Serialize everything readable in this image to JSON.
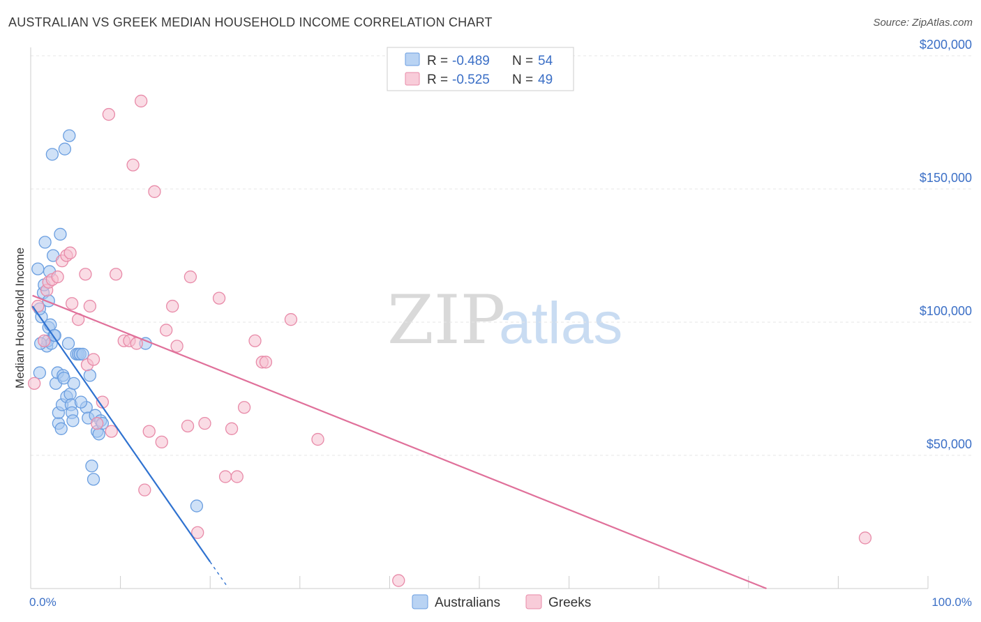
{
  "title": "AUSTRALIAN VS GREEK MEDIAN HOUSEHOLD INCOME CORRELATION CHART",
  "source": "Source: ZipAtlas.com",
  "watermark": {
    "zip": "ZIP",
    "atlas": "atlas"
  },
  "colors": {
    "australians_fill": "#a8c8f0",
    "australians_stroke": "#6a9ee0",
    "australians_line": "#2f72d0",
    "greeks_fill": "#f6bfd0",
    "greeks_stroke": "#e88aa8",
    "greeks_line": "#e0709a",
    "tick_text": "#3b6fc6",
    "grid": "#e6e6e6"
  },
  "legend": {
    "rows": [
      {
        "r_label": "R = ",
        "r_value": "-0.489",
        "n_label": "N = ",
        "n_value": "54"
      },
      {
        "r_label": "R = ",
        "r_value": "-0.525",
        "n_label": "N = ",
        "n_value": "49"
      }
    ]
  },
  "bottom_legend": [
    "Australians",
    "Greeks"
  ],
  "chart_data": {
    "type": "scatter",
    "xlabel": "",
    "ylabel": "Median Household Income",
    "xlim": [
      0,
      100
    ],
    "ylim": [
      0,
      200000
    ],
    "x_tick_labels": [
      "0.0%",
      "100.0%"
    ],
    "y_ticks": [
      50000,
      100000,
      150000,
      200000
    ],
    "y_tick_labels": [
      "$50,000",
      "$100,000",
      "$150,000",
      "$200,000"
    ],
    "grid": true,
    "series": [
      {
        "name": "Australians",
        "R": -0.489,
        "N": 54,
        "trend": {
          "x0": 0.2,
          "y0": 106000,
          "x1": 20,
          "y1": 10000,
          "dash_to_x": 22
        },
        "points": [
          [
            1.0,
            81000
          ],
          [
            1.2,
            102000
          ],
          [
            1.0,
            105000
          ],
          [
            1.4,
            111000
          ],
          [
            1.5,
            114000
          ],
          [
            1.6,
            130000
          ],
          [
            1.8,
            91000
          ],
          [
            1.9,
            93000
          ],
          [
            2.0,
            98000
          ],
          [
            2.1,
            119000
          ],
          [
            2.2,
            99000
          ],
          [
            2.3,
            92000
          ],
          [
            2.4,
            163000
          ],
          [
            2.5,
            125000
          ],
          [
            2.6,
            95000
          ],
          [
            2.7,
            95000
          ],
          [
            2.8,
            77000
          ],
          [
            3.0,
            81000
          ],
          [
            3.1,
            62000
          ],
          [
            3.1,
            66000
          ],
          [
            3.3,
            133000
          ],
          [
            3.4,
            60000
          ],
          [
            3.5,
            69000
          ],
          [
            3.6,
            80000
          ],
          [
            3.7,
            79000
          ],
          [
            3.8,
            165000
          ],
          [
            4.0,
            72000
          ],
          [
            4.2,
            92000
          ],
          [
            4.3,
            170000
          ],
          [
            4.4,
            73000
          ],
          [
            4.5,
            69000
          ],
          [
            4.6,
            66000
          ],
          [
            4.7,
            63000
          ],
          [
            4.8,
            77000
          ],
          [
            5.1,
            88000
          ],
          [
            5.3,
            88000
          ],
          [
            5.5,
            88000
          ],
          [
            5.8,
            88000
          ],
          [
            6.2,
            68000
          ],
          [
            6.4,
            64000
          ],
          [
            6.6,
            80000
          ],
          [
            6.8,
            46000
          ],
          [
            7.0,
            41000
          ],
          [
            7.2,
            65000
          ],
          [
            7.4,
            59000
          ],
          [
            7.6,
            58000
          ],
          [
            7.8,
            63000
          ],
          [
            8.0,
            62000
          ],
          [
            12.8,
            92000
          ],
          [
            18.5,
            31000
          ],
          [
            0.8,
            120000
          ],
          [
            1.1,
            92000
          ],
          [
            2.0,
            108000
          ],
          [
            5.6,
            70000
          ]
        ]
      },
      {
        "name": "Greeks",
        "R": -0.525,
        "N": 49,
        "trend": {
          "x0": 0.2,
          "y0": 110000,
          "x1": 82,
          "y1": 0
        },
        "points": [
          [
            0.4,
            77000
          ],
          [
            0.8,
            106000
          ],
          [
            1.5,
            93000
          ],
          [
            1.8,
            112000
          ],
          [
            2.0,
            115000
          ],
          [
            2.4,
            116000
          ],
          [
            3.0,
            117000
          ],
          [
            3.5,
            123000
          ],
          [
            4.0,
            125000
          ],
          [
            4.4,
            126000
          ],
          [
            4.6,
            107000
          ],
          [
            5.3,
            101000
          ],
          [
            6.1,
            118000
          ],
          [
            6.3,
            84000
          ],
          [
            6.6,
            106000
          ],
          [
            7.0,
            86000
          ],
          [
            7.4,
            62000
          ],
          [
            8.0,
            70000
          ],
          [
            8.7,
            178000
          ],
          [
            9.0,
            59000
          ],
          [
            9.5,
            118000
          ],
          [
            10.4,
            93000
          ],
          [
            11.0,
            93000
          ],
          [
            11.4,
            159000
          ],
          [
            11.8,
            92000
          ],
          [
            12.3,
            183000
          ],
          [
            12.7,
            37000
          ],
          [
            13.2,
            59000
          ],
          [
            13.8,
            149000
          ],
          [
            14.6,
            55000
          ],
          [
            15.1,
            97000
          ],
          [
            15.8,
            106000
          ],
          [
            16.3,
            91000
          ],
          [
            17.5,
            61000
          ],
          [
            17.8,
            117000
          ],
          [
            18.6,
            21000
          ],
          [
            19.4,
            62000
          ],
          [
            21.0,
            109000
          ],
          [
            21.7,
            42000
          ],
          [
            22.4,
            60000
          ],
          [
            23.0,
            42000
          ],
          [
            23.8,
            68000
          ],
          [
            25.0,
            93000
          ],
          [
            25.8,
            85000
          ],
          [
            26.2,
            85000
          ],
          [
            29.0,
            101000
          ],
          [
            32.0,
            56000
          ],
          [
            41.0,
            3000
          ],
          [
            93.0,
            19000
          ]
        ]
      }
    ]
  }
}
